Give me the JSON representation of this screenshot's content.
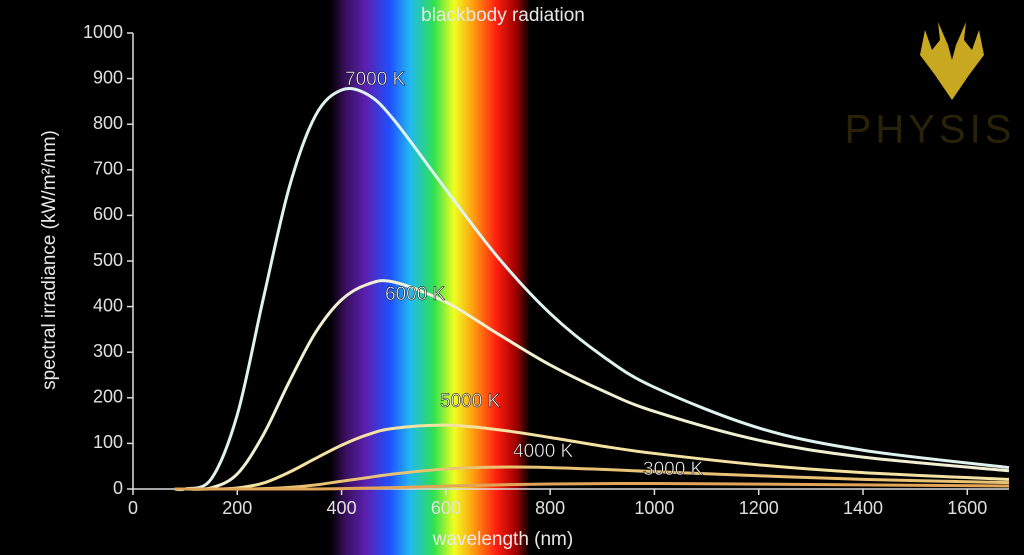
{
  "chart_data": {
    "type": "line",
    "title": "blackbody radiation",
    "xlabel": "wavelength (nm)",
    "ylabel": "spectral irradiance (kW/m²/nm)",
    "watermark": "PHYSIS",
    "x": [
      80,
      100,
      150,
      200,
      250,
      300,
      350,
      400,
      450,
      500,
      600,
      700,
      800,
      900,
      1000,
      1200,
      1400,
      1680
    ],
    "series": [
      {
        "name": "7000 K",
        "color": "#dff3ee",
        "values": [
          0,
          0.2,
          22,
          163,
          418,
          663,
          819,
          875,
          865,
          810,
          657,
          508,
          385,
          292,
          223,
          134,
          85,
          47
        ]
      },
      {
        "name": "6000 K",
        "color": "#f2f0d2",
        "values": [
          0,
          0,
          2.6,
          33,
          119,
          236,
          343,
          415,
          449,
          454,
          410,
          340,
          272,
          216,
          170,
          107,
          70,
          40
        ]
      },
      {
        "name": "5000 K",
        "color": "#f4e2a2",
        "values": [
          0,
          0,
          0,
          2.3,
          13,
          37,
          67,
          96,
          119,
          133,
          140,
          130,
          113,
          94,
          78,
          53,
          36,
          21
        ]
      },
      {
        "name": "4000 K",
        "color": "#e9c274",
        "values": [
          0,
          0,
          0,
          0,
          0.8,
          3.5,
          8.9,
          17,
          25,
          33,
          44,
          48,
          47,
          43,
          38,
          29,
          21,
          14
        ]
      },
      {
        "name": "3000 K",
        "color": "#e2a456",
        "values": [
          0,
          0,
          0,
          0,
          0,
          0,
          0,
          0.9,
          2,
          3.1,
          6.3,
          9.1,
          11,
          11.9,
          12,
          10.8,
          9,
          6.6
        ]
      }
    ],
    "xlim": [
      0,
      1680
    ],
    "xticks": [
      0,
      200,
      400,
      600,
      800,
      1000,
      1200,
      1400,
      1600
    ],
    "ylim": [
      0,
      1000
    ],
    "yticks": [
      0,
      100,
      200,
      300,
      400,
      500,
      600,
      700,
      800,
      900,
      1000
    ],
    "grid": false
  }
}
